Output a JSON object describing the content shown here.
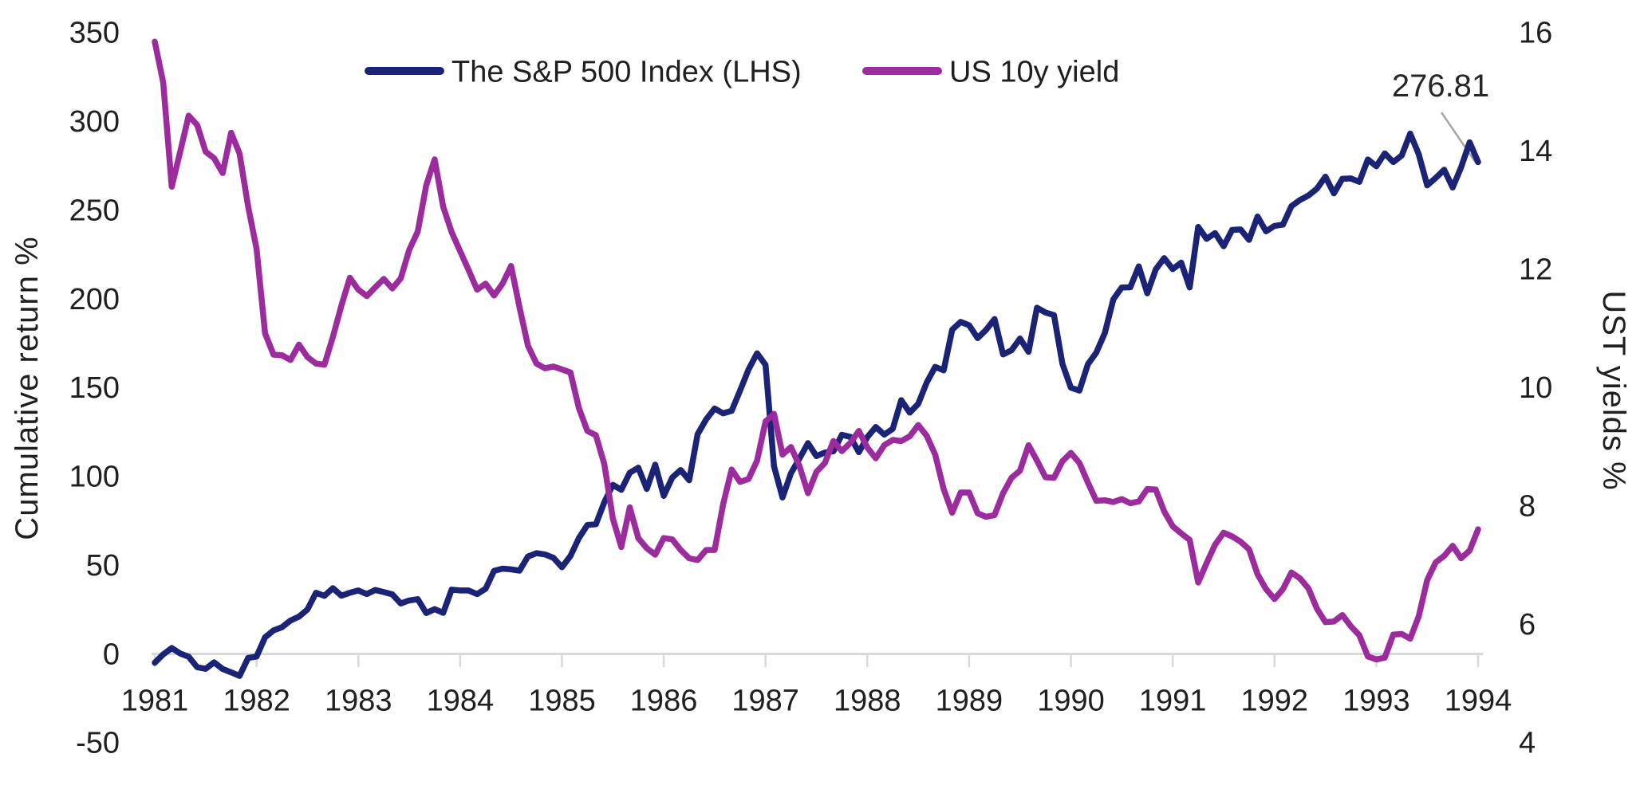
{
  "chart_data": {
    "type": "line",
    "title": "",
    "x_tick_labels": [
      "1981",
      "1982",
      "1983",
      "1984",
      "1985",
      "1986",
      "1987",
      "1988",
      "1989",
      "1990",
      "1991",
      "1992",
      "1993",
      "1994"
    ],
    "points_per_x_tick": 12,
    "grid": "none",
    "legend_position": "top",
    "left_axis": {
      "label": "Cumulative return %",
      "ticks": [
        "350",
        "300",
        "250",
        "200",
        "150",
        "100",
        "50",
        "0",
        "-50"
      ],
      "min": -50,
      "max": 350
    },
    "right_axis": {
      "label": "UST yields %",
      "ticks": [
        "16",
        "14",
        "12",
        "10",
        "8",
        "6",
        "4"
      ],
      "min": 4,
      "max": 16
    },
    "annotation": {
      "text": "276.81",
      "series": "The S&P 500 Index (LHS)",
      "position": "last-point"
    },
    "series": [
      {
        "name": "The S&P 500 Index (LHS)",
        "axis": "left",
        "color": "#1A2375",
        "values": [
          -5.2,
          -0.5,
          3.1,
          0,
          -1.8,
          -7.7,
          -8.6,
          -5,
          -8.7,
          -10.6,
          -12.6,
          -2.5,
          -1.7,
          9.1,
          13,
          14.8,
          18.6,
          20.8,
          24.8,
          34.2,
          32.5,
          36.8,
          32.6,
          34.2,
          35.5,
          33.5,
          35.8,
          34.6,
          33.3,
          28.2,
          29.9,
          30.6,
          22.8,
          25,
          22.9,
          36,
          35.5,
          35.5,
          33.5,
          36.5,
          46.6,
          47.8,
          47.4,
          46.7,
          54.7,
          56.5,
          55.8,
          53.9,
          48.6,
          54.9,
          65,
          72.4,
          72.8,
          85.2,
          95,
          92.2,
          101.8,
          104.7,
          92.7,
          106.4,
          88.8,
          99.1,
          103.4,
          97.6,
          123.6,
          131.9,
          138,
          135.3,
          136.7,
          148.1,
          160,
          169.1,
          162.6,
          105.5,
          87.9,
          101.6,
          109.8,
          118.5,
          111.2,
          113.2,
          113.9,
          123.2,
          122,
          113.4,
          121.9,
          127.6,
          123.3,
          126.6,
          142.7,
          135.7,
          140.6,
          152.7,
          161.5,
          159.5,
          182.4,
          186.8,
          184.9,
          177.7,
          182.3,
          188.4,
          168.5,
          170.8,
          177.4,
          169.9,
          194.8,
          192.1,
          190.6,
          163.2,
          149.7,
          148.1,
          162.9,
          169.5,
          180.6,
          199.5,
          206.2,
          206.3,
          218.1,
          202.9,
          216.4,
          222.7,
          216.5,
          220.2,
          206.2,
          240.3,
          233.6,
          236.8,
          229.4,
          238.6,
          238.9,
          233,
          246.2,
          237.8,
          240.9,
          241.6,
          252,
          255.5,
          258,
          261.8,
          268.6,
          259.2,
          267.4,
          267.6,
          265.7,
          278.3,
          274.5,
          281.7,
          276.8,
          280.6,
          292.9,
          281.2,
          263.7,
          267.9,
          272.5,
          262.5,
          273.9,
          288,
          276.81
        ]
      },
      {
        "name": "US 10y yield",
        "axis": "right",
        "color": "#9C2B9D",
        "values": [
          15.84,
          15.15,
          13.39,
          13.98,
          14.59,
          14.43,
          13.98,
          13.87,
          13.62,
          14.3,
          13.95,
          13.06,
          12.34,
          10.91,
          10.55,
          10.54,
          10.46,
          10.72,
          10.51,
          10.4,
          10.38,
          10.85,
          11.38,
          11.85,
          11.65,
          11.54,
          11.69,
          11.83,
          11.67,
          11.84,
          12.32,
          12.63,
          13.41,
          13.85,
          13.05,
          12.62,
          12.3,
          11.98,
          11.65,
          11.75,
          11.55,
          11.75,
          12.05,
          11.35,
          10.7,
          10.4,
          10.32,
          10.35,
          10.3,
          10.25,
          9.65,
          9.26,
          9.19,
          8.7,
          7.78,
          7.3,
          7.97,
          7.45,
          7.28,
          7.17,
          7.45,
          7.43,
          7.25,
          7.11,
          7.08,
          7.25,
          7.25,
          8.02,
          8.61,
          8.4,
          8.45,
          8.76,
          9.42,
          9.55,
          8.86,
          8.99,
          8.67,
          8.21,
          8.57,
          8.72,
          9.09,
          8.92,
          9.06,
          9.26,
          8.98,
          8.8,
          9.02,
          9.11,
          9.09,
          9.17,
          9.36,
          9.18,
          8.86,
          8.28,
          7.88,
          8.22,
          8.22,
          7.87,
          7.81,
          7.84,
          8.21,
          8.47,
          8.59,
          9.02,
          8.76,
          8.48,
          8.47,
          8.75,
          8.89,
          8.72,
          8.39,
          8.08,
          8.09,
          8.06,
          8.11,
          8.04,
          8.07,
          8.28,
          8.27,
          7.9,
          7.65,
          7.53,
          7.42,
          6.7,
          7.03,
          7.34,
          7.54,
          7.48,
          7.39,
          7.26,
          6.84,
          6.59,
          6.42,
          6.59,
          6.87,
          6.77,
          6.6,
          6.26,
          6.03,
          6.04,
          6.15,
          5.96,
          5.81,
          5.45,
          5.4,
          5.43,
          5.82,
          5.83,
          5.75,
          6.13,
          6.74,
          7.04,
          7.15,
          7.32,
          7.11,
          7.24,
          7.6
        ]
      }
    ],
    "colors": {
      "sp500_line": "#1A2375",
      "yield_line": "#9C2B9D",
      "axis_line": "#D9D9D9",
      "leader_line": "#A6A6A6",
      "text": "#1f1f1f"
    }
  }
}
